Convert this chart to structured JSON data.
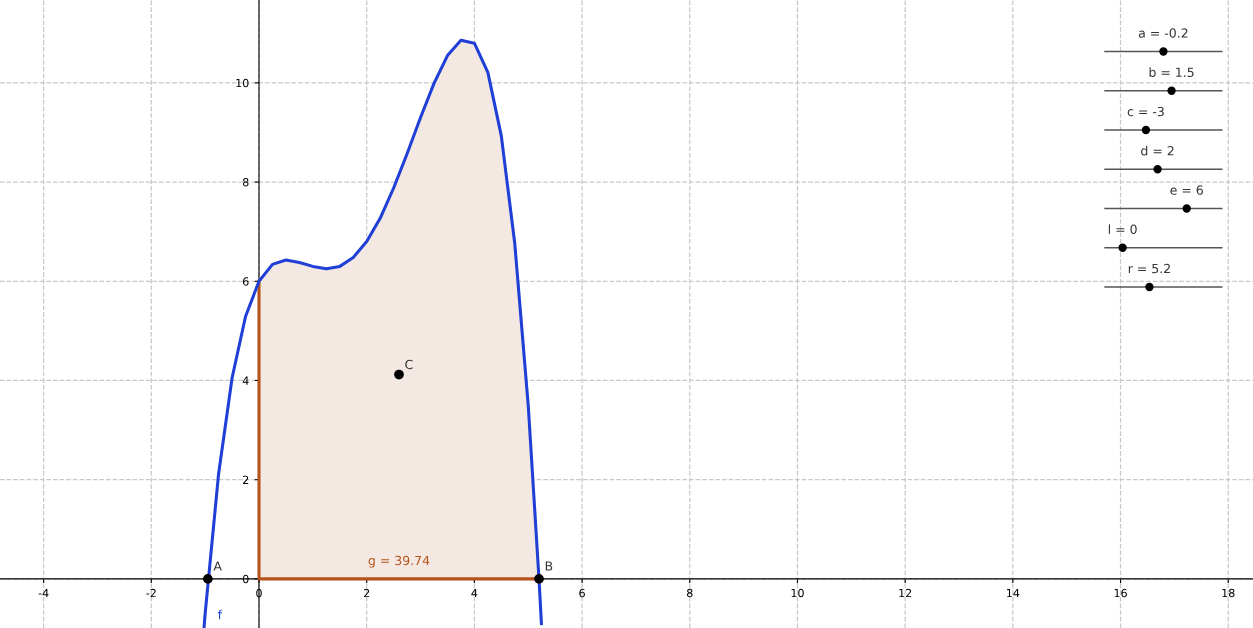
{
  "chart_data": {
    "type": "line",
    "xlim": [
      -4.81,
      18.46
    ],
    "ylim": [
      -0.99,
      11.67
    ],
    "xticks": [
      -4,
      -2,
      0,
      2,
      4,
      6,
      8,
      10,
      12,
      14,
      16,
      18
    ],
    "yticks": [
      0,
      2,
      4,
      6,
      8,
      10
    ],
    "grid": true,
    "series": [
      {
        "type": "area",
        "color": "#f4e8e2",
        "x": [
          0,
          0.25,
          0.5,
          0.75,
          1.0,
          1.25,
          1.5,
          1.75,
          2.0,
          2.25,
          2.5,
          2.75,
          3.0,
          3.25,
          3.5,
          3.75,
          4.0,
          4.25,
          4.5,
          4.75,
          5.0,
          5.2
        ],
        "values": [
          6,
          6.34,
          6.43,
          6.38,
          6.3,
          6.25,
          6.3,
          6.48,
          6.8,
          7.27,
          7.88,
          8.57,
          9.3,
          9.99,
          10.55,
          10.86,
          10.8,
          10.21,
          8.93,
          6.76,
          3.5,
          0
        ]
      },
      {
        "type": "line",
        "color": "#b5541a",
        "x": [
          0,
          0,
          5.2
        ],
        "values": [
          6,
          0,
          0
        ]
      },
      {
        "color": "#1f3fd6",
        "marker": "none",
        "x": [
          -1.02,
          -1.0,
          -0.75,
          -0.5,
          -0.25,
          0,
          0.25,
          0.5,
          0.75,
          1.0,
          1.25,
          1.5,
          1.75,
          2.0,
          2.25,
          2.5,
          2.75,
          3.0,
          3.25,
          3.5,
          3.75,
          4.0,
          4.25,
          4.5,
          4.75,
          5.0,
          5.2,
          5.245
        ],
        "values": [
          -0.97,
          -0.7,
          2.12,
          4.05,
          5.29,
          6,
          6.34,
          6.43,
          6.38,
          6.3,
          6.25,
          6.3,
          6.48,
          6.8,
          7.27,
          7.88,
          8.57,
          9.3,
          9.99,
          10.55,
          10.86,
          10.8,
          10.21,
          8.93,
          6.76,
          3.5,
          0,
          -0.9
        ]
      },
      {
        "type": "scatter",
        "color": "#000000",
        "marker": "circle",
        "x": [
          -0.95,
          5.2,
          2.6
        ],
        "values": [
          0,
          0,
          4.12
        ]
      }
    ],
    "annotations": [
      {
        "text": "A",
        "x": -0.95,
        "y": 0
      },
      {
        "text": "B",
        "x": 5.2,
        "y": 0
      },
      {
        "text": "C",
        "x": 2.6,
        "y": 4.12
      },
      {
        "text": "f",
        "x": -1.0,
        "y": -0.7
      },
      {
        "text": "g = 39.74",
        "x": 2.6,
        "y": 0
      },
      "a = -0.2",
      "b = 1.5",
      "c = -3",
      "d = 2",
      "e = 6",
      "l = 0",
      "r = 5.2"
    ]
  }
}
